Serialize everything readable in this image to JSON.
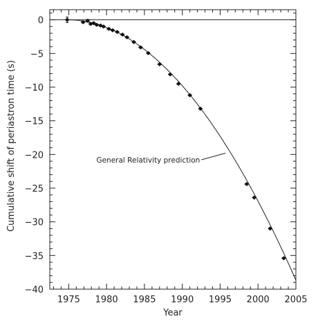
{
  "chart_data": {
    "type": "scatter",
    "xlabel": "Year",
    "ylabel": "Cumulative shift of periastron time (s)",
    "xlim": [
      1972.5,
      2005
    ],
    "ylim": [
      -40,
      1.5
    ],
    "x_ticks": [
      1975,
      1980,
      1985,
      1990,
      1995,
      2000,
      2005
    ],
    "y_ticks": [
      0,
      -5,
      -10,
      -15,
      -20,
      -25,
      -30,
      -35,
      -40
    ],
    "grid": false,
    "reference_line": {
      "y": 0
    },
    "curve": {
      "name": "General Relativity prediction",
      "t0": 1974.8,
      "coefficient": -0.0424
    },
    "annotation": {
      "text": "General Relativity prediction",
      "x": 1985.5,
      "y": -21.2,
      "arrow_to": [
        1995.7,
        -19.8
      ]
    },
    "points": [
      {
        "x": 1974.8,
        "y": 0.0,
        "err": 0.4
      },
      {
        "x": 1976.9,
        "y": -0.35,
        "err": 0.15
      },
      {
        "x": 1977.5,
        "y": -0.15,
        "err": 0.2
      },
      {
        "x": 1977.9,
        "y": -0.6,
        "err": 0.15
      },
      {
        "x": 1978.3,
        "y": -0.5,
        "err": 0.15
      },
      {
        "x": 1978.7,
        "y": -0.75,
        "err": 0.12
      },
      {
        "x": 1979.2,
        "y": -0.85,
        "err": 0.12
      },
      {
        "x": 1979.6,
        "y": -1.0,
        "err": 0.1
      },
      {
        "x": 1980.3,
        "y": -1.35,
        "err": 0.1
      },
      {
        "x": 1980.8,
        "y": -1.55,
        "err": 0.1
      },
      {
        "x": 1981.4,
        "y": -1.8,
        "err": 0.1
      },
      {
        "x": 1982.1,
        "y": -2.2,
        "err": 0.1
      },
      {
        "x": 1982.7,
        "y": -2.6,
        "err": 0.1
      },
      {
        "x": 1983.6,
        "y": -3.3,
        "err": 0.1
      },
      {
        "x": 1984.5,
        "y": -4.1,
        "err": 0.1
      },
      {
        "x": 1985.5,
        "y": -4.95,
        "err": 0.1
      },
      {
        "x": 1987.0,
        "y": -6.6,
        "err": 0.1
      },
      {
        "x": 1988.4,
        "y": -8.1,
        "err": 0.1
      },
      {
        "x": 1989.5,
        "y": -9.5,
        "err": 0.1
      },
      {
        "x": 1991.0,
        "y": -11.2,
        "err": 0.1
      },
      {
        "x": 1992.4,
        "y": -13.2,
        "err": 0.1
      },
      {
        "x": 1998.5,
        "y": -24.4,
        "err": 0.1
      },
      {
        "x": 1999.5,
        "y": -26.4,
        "err": 0.1
      },
      {
        "x": 2001.6,
        "y": -31.0,
        "err": 0.1
      },
      {
        "x": 2003.4,
        "y": -35.4,
        "err": 0.1
      }
    ]
  }
}
